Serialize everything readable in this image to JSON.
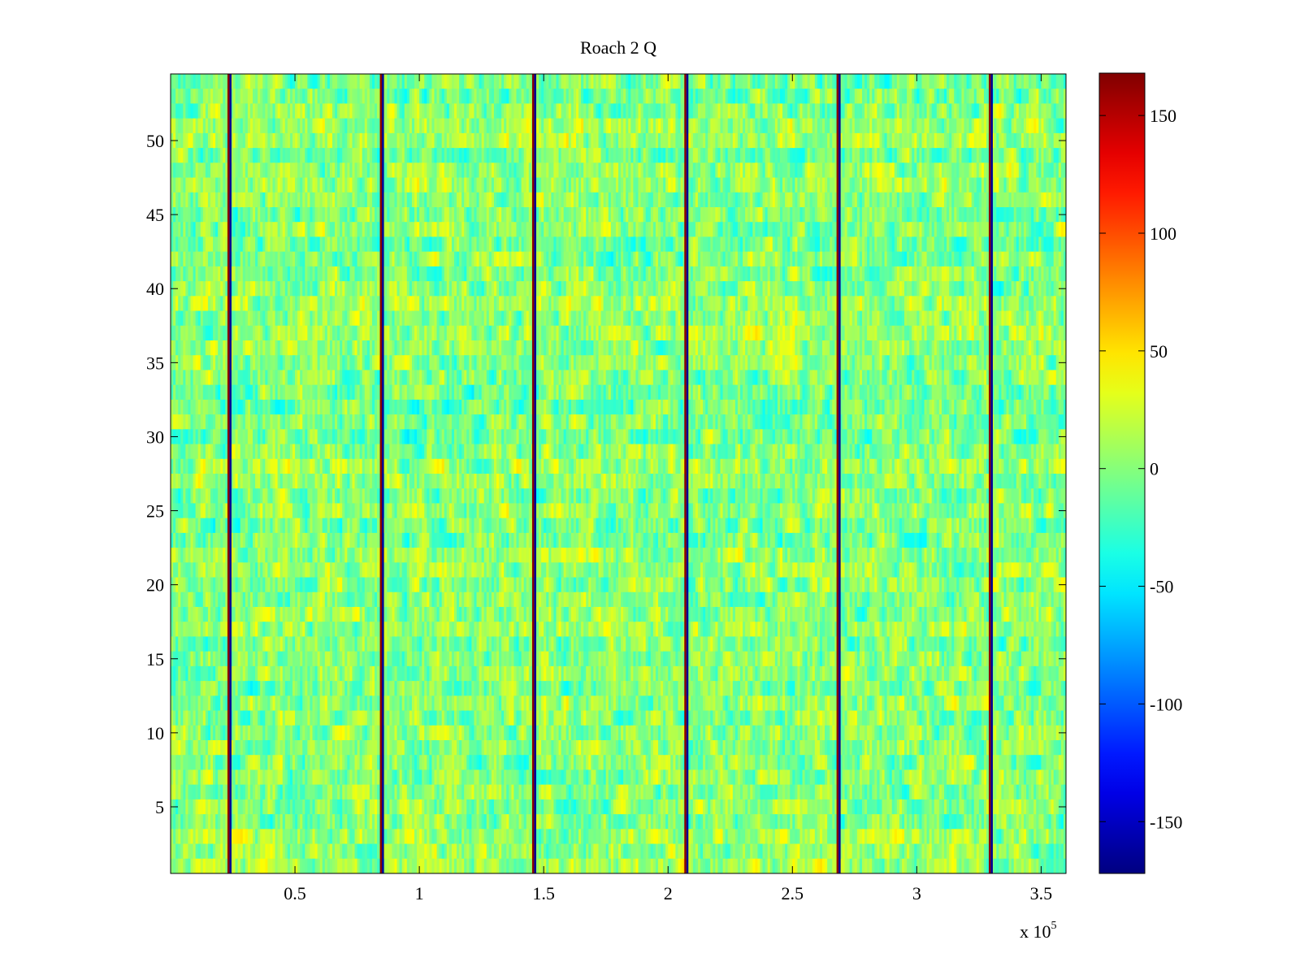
{
  "chart_data": {
    "type": "heatmap",
    "title": "Roach 2 Q",
    "xlabel": "",
    "ylabel": "",
    "x_exponent_label": {
      "prefix": "x 10",
      "exponent": "5"
    },
    "xlim": [
      0,
      3.6
    ],
    "ylim": [
      0.5,
      54.5
    ],
    "xticks": [
      0.5,
      1,
      1.5,
      2,
      2.5,
      3,
      3.5
    ],
    "xtick_labels": [
      "0.5",
      "1",
      "1.5",
      "2",
      "2.5",
      "3",
      "3.5"
    ],
    "yticks": [
      5,
      10,
      15,
      20,
      25,
      30,
      35,
      40,
      45,
      50
    ],
    "ytick_labels": [
      "5",
      "10",
      "15",
      "20",
      "25",
      "30",
      "35",
      "40",
      "45",
      "50"
    ],
    "rows": 54,
    "colormap": "jet",
    "clim": [
      -172,
      168
    ],
    "colorbar_ticks": [
      150,
      100,
      50,
      0,
      -50,
      -100,
      -150
    ],
    "colorbar_tick_labels": [
      "150",
      "100",
      "50",
      "0",
      "-50",
      "-100",
      "-150"
    ],
    "background_level": 0,
    "vertical_stripes_x": [
      0.235,
      0.848,
      1.46,
      2.072,
      2.684,
      3.296
    ],
    "stripe_high_value": 165,
    "stripe_low_value": -165,
    "grid": false
  }
}
